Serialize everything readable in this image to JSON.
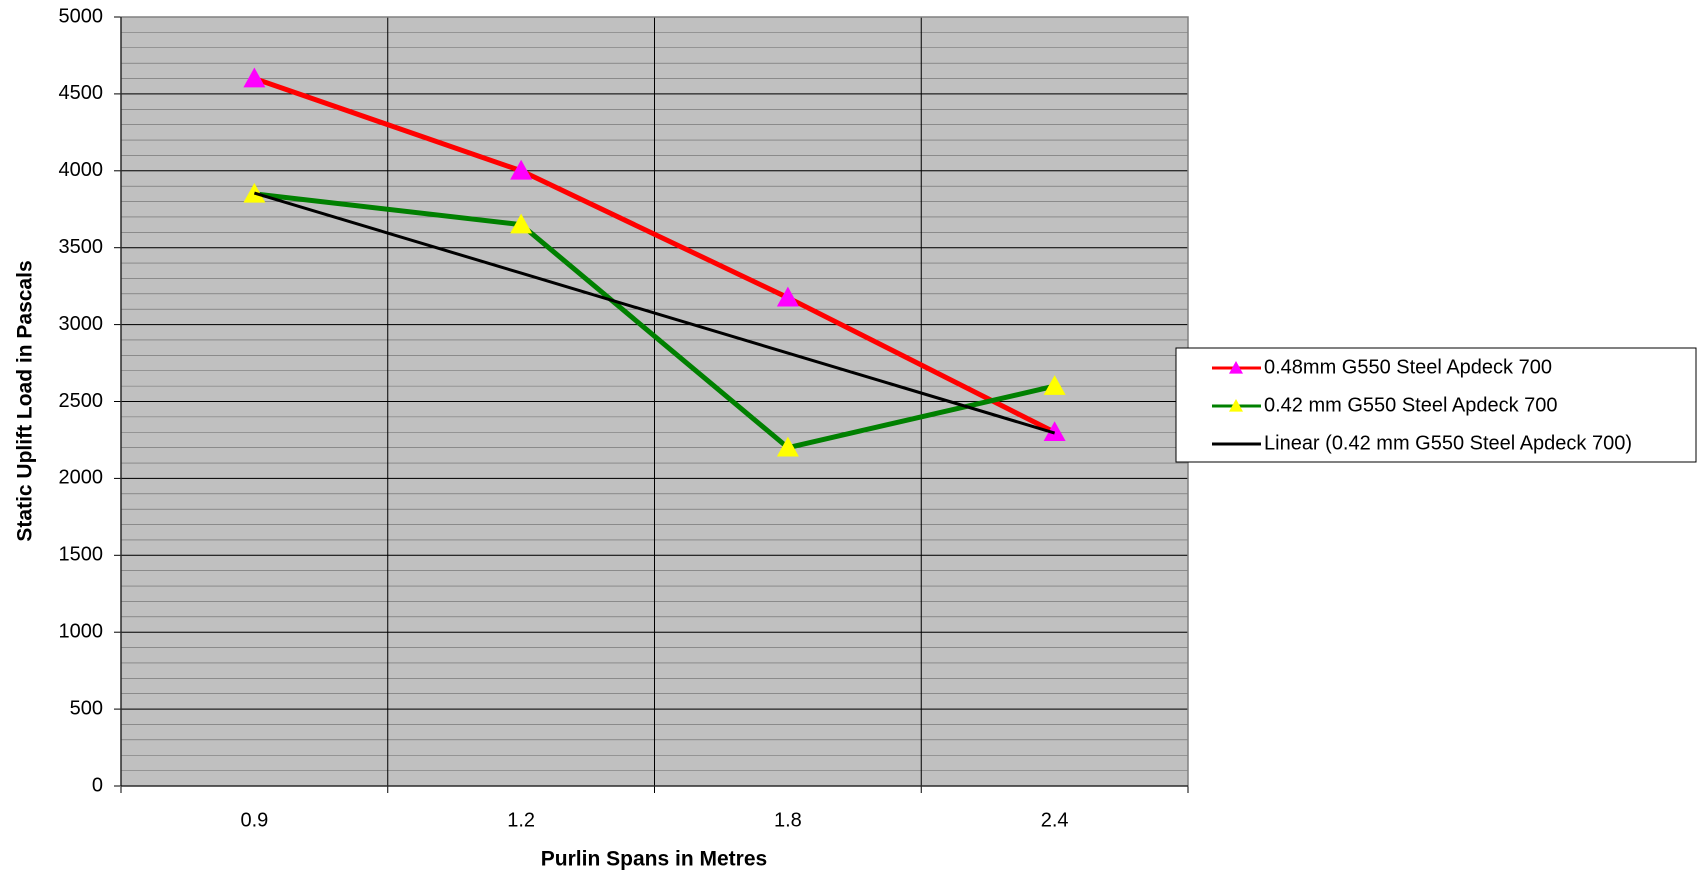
{
  "chart_data": {
    "type": "line",
    "x_label": "Purlin Spans in Metres",
    "y_label": "Static Uplift Load in Pascals",
    "categories": [
      "0.9",
      "1.2",
      "1.8",
      "2.4"
    ],
    "series": [
      {
        "name": "0.48mm G550 Steel Apdeck 700",
        "color": "#ff0000",
        "marker": "triangle",
        "marker_color": "#ff00ff",
        "values": [
          4600,
          4000,
          3175,
          2300
        ]
      },
      {
        "name": "0.42 mm G550 Steel Apdeck 700",
        "color": "#008000",
        "marker": "triangle",
        "marker_color": "#ffff00",
        "values": [
          3850,
          3650,
          2200,
          2600
        ]
      },
      {
        "name": "Linear (0.42 mm G550 Steel Apdeck 700)",
        "color": "#000000",
        "marker": "none",
        "values": [
          3855,
          3335,
          2815,
          2295
        ]
      }
    ],
    "ylim": [
      0,
      5000
    ],
    "yticks": [
      0,
      500,
      1000,
      1500,
      2000,
      2500,
      3000,
      3500,
      4000,
      4500,
      5000
    ],
    "y_minor_step": 100,
    "grid": true,
    "plot_background": "#c0c0c0",
    "legend": "right"
  }
}
